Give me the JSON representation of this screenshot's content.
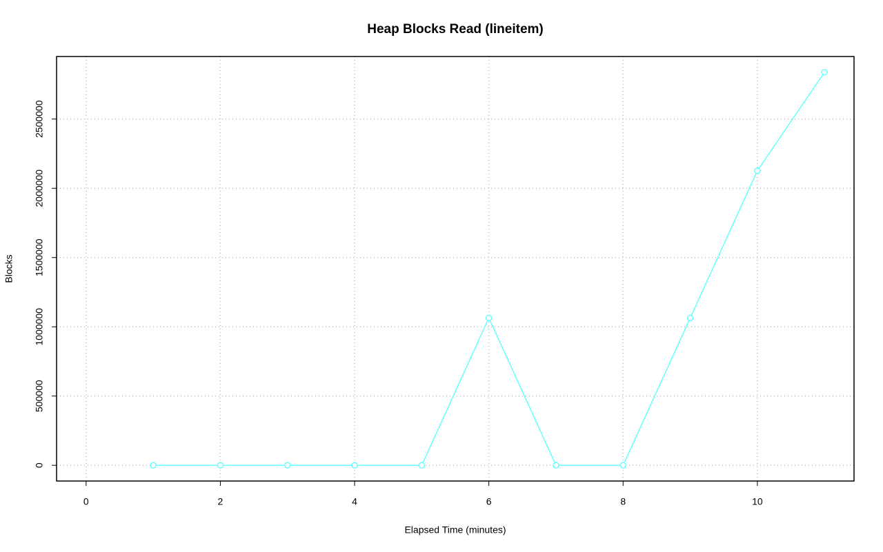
{
  "chart_data": {
    "type": "line",
    "title": "Heap Blocks Read (lineitem)",
    "x_label": "Elapsed Time (minutes)",
    "y_label": "Blocks",
    "x": [
      1,
      2,
      3,
      4,
      5,
      6,
      7,
      8,
      9,
      10,
      11
    ],
    "series": [
      {
        "name": "lineitem",
        "color": "#66ffff",
        "values": [
          0,
          0,
          0,
          0,
          0,
          1064000,
          0,
          0,
          1064000,
          2127000,
          2838000
        ]
      }
    ],
    "xlim": [
      -0.44,
      11.44
    ],
    "xticks": [
      0,
      2,
      4,
      6,
      8,
      10
    ],
    "ylim": [
      -113500,
      2951500
    ],
    "yticks": [
      0,
      500000,
      1000000,
      1500000,
      2000000,
      2500000
    ],
    "grid": true
  }
}
